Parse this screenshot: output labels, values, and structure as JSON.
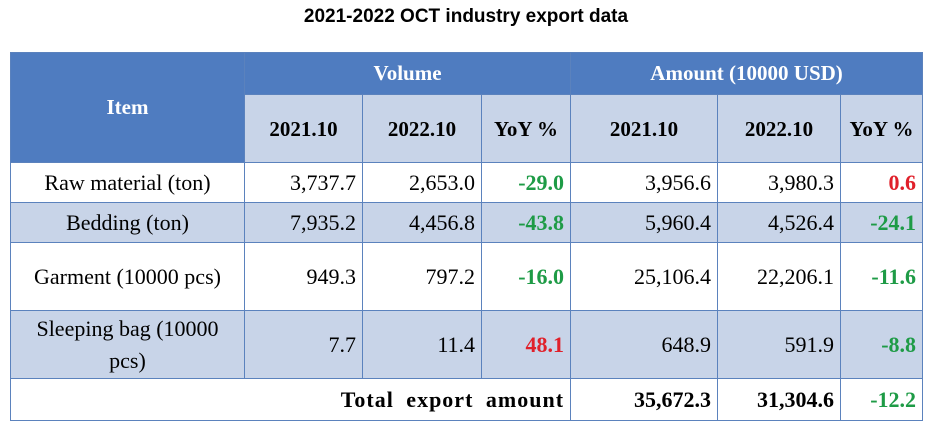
{
  "title": "2021-2022 OCT industry export data",
  "header": {
    "item": "Item",
    "volume": "Volume",
    "amount": "Amount (10000 USD)",
    "col_2021": "2021.10",
    "col_2022": "2022.10",
    "yoy": "YoY %"
  },
  "rows": [
    {
      "item": "Raw material (ton)",
      "vol_2021": "3,737.7",
      "vol_2022": "2,653.0",
      "vol_yoy": "-29.0",
      "amt_2021": "3,956.6",
      "amt_2022": "3,980.3",
      "amt_yoy": "0.6"
    },
    {
      "item": "Bedding (ton)",
      "vol_2021": "7,935.2",
      "vol_2022": "4,456.8",
      "vol_yoy": "-43.8",
      "amt_2021": "5,960.4",
      "amt_2022": "4,526.4",
      "amt_yoy": "-24.1"
    },
    {
      "item": "Garment (10000 pcs)",
      "vol_2021": "949.3",
      "vol_2022": "797.2",
      "vol_yoy": "-16.0",
      "amt_2021": "25,106.4",
      "amt_2022": "22,206.1",
      "amt_yoy": "-11.6"
    },
    {
      "item": "Sleeping bag (10000 pcs)",
      "vol_2021": "7.7",
      "vol_2022": "11.4",
      "vol_yoy": "48.1",
      "amt_2021": "648.9",
      "amt_2022": "591.9",
      "amt_yoy": "-8.8"
    }
  ],
  "total": {
    "label": "Total export amount",
    "amt_2021": "35,672.3",
    "amt_2022": "31,304.6",
    "amt_yoy": "-12.2"
  },
  "colors": {
    "header_blue": "#4f7cc0",
    "row_light_blue": "#c8d4e8",
    "negative_green": "#1e9b46",
    "positive_red": "#e0202a"
  }
}
